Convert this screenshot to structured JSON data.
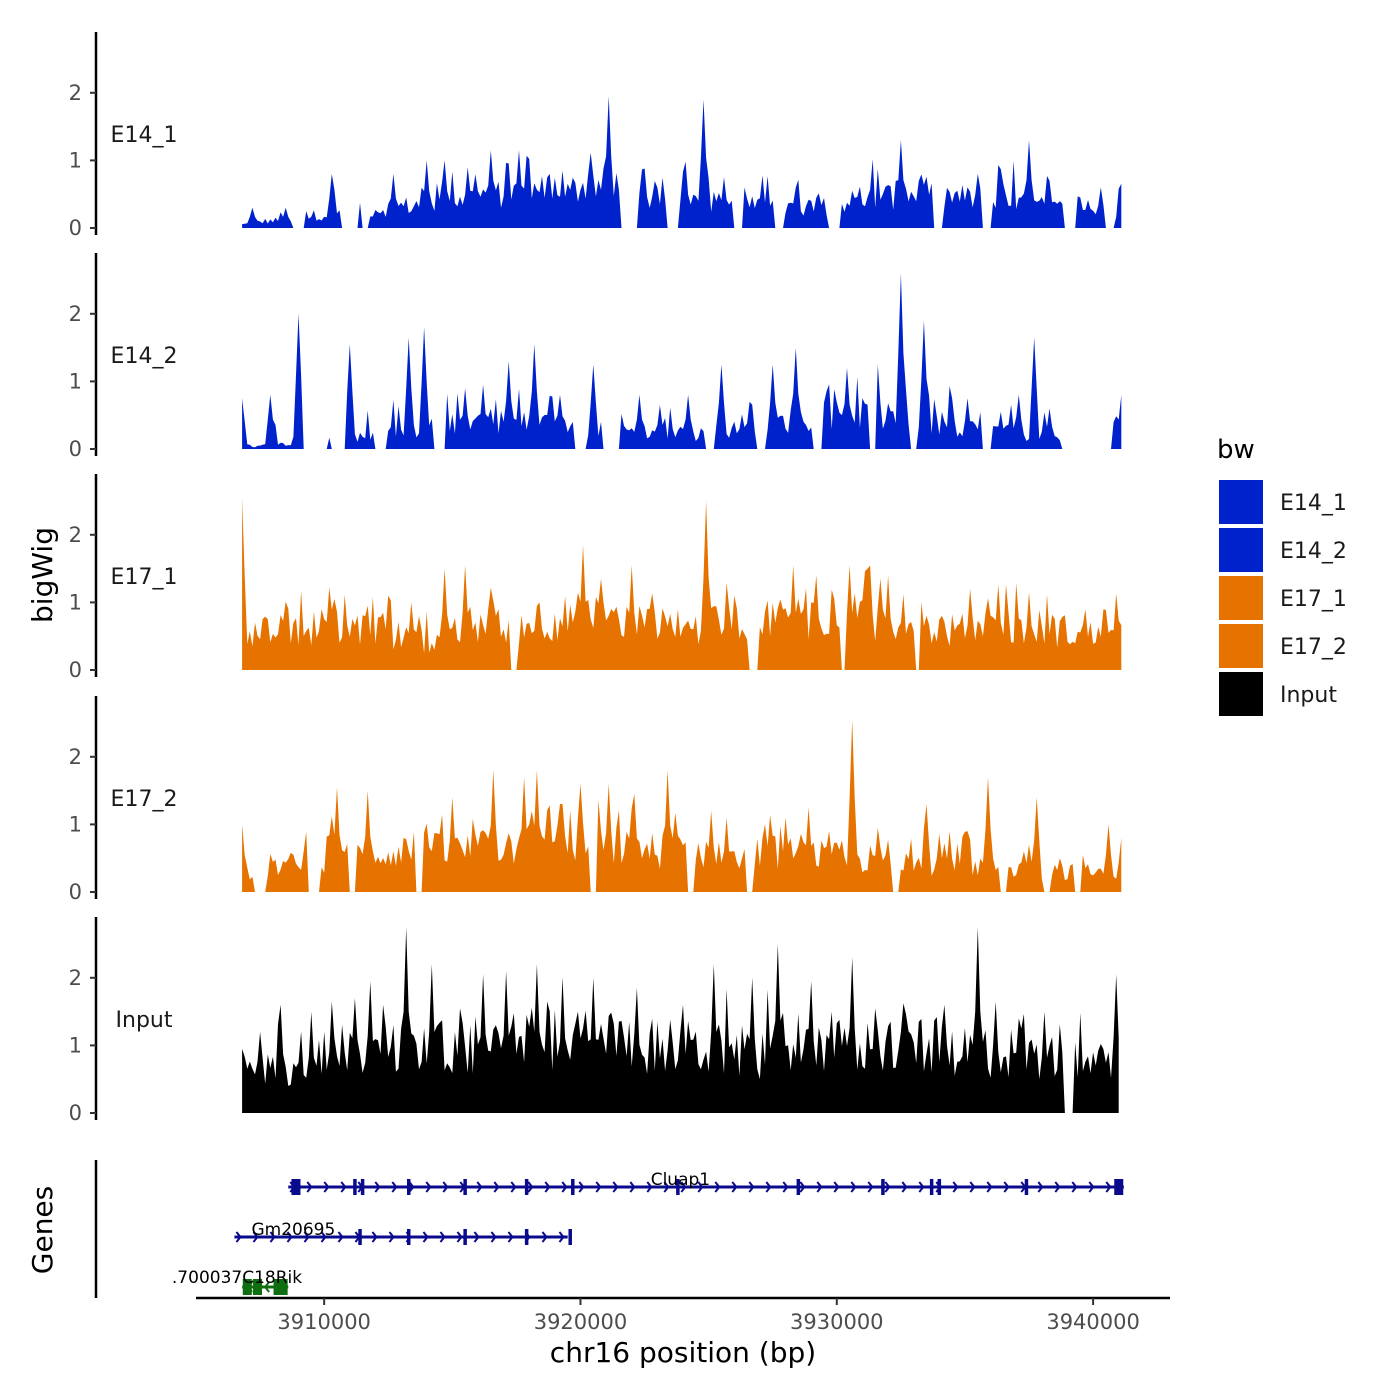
{
  "chart_data": {
    "type": "area",
    "ylabel": "bigWig",
    "xlabel": "chr16 position (bp)",
    "genes_label": "Genes",
    "chrom": "chr16",
    "x_range": [
      3905000,
      3943000
    ],
    "x_ticks": [
      3910000,
      3920000,
      3930000,
      3940000
    ],
    "x_tick_labels": [
      "3910000",
      "3920000",
      "3930000",
      "3940000"
    ],
    "y_range": [
      0,
      2.9
    ],
    "y_ticks": [
      0,
      1,
      2
    ],
    "y_tick_labels": [
      "0",
      "1",
      "2"
    ],
    "legend": {
      "title": "bw",
      "entries": [
        {
          "label": "E14_1",
          "color": "#0022CC"
        },
        {
          "label": "E14_2",
          "color": "#0022CC"
        },
        {
          "label": "E17_1",
          "color": "#E67300"
        },
        {
          "label": "E17_2",
          "color": "#E67300"
        },
        {
          "label": "Input",
          "color": "#000000"
        }
      ]
    },
    "tracks": [
      {
        "name": "E14_1",
        "color": "#0022CC",
        "x_start": 3906800,
        "x_end": 3941100,
        "base": [
          0.05,
          0.1,
          0.12,
          0.18,
          0.22,
          0.25,
          0.28,
          0.32,
          0.35,
          0.4,
          0.45,
          0.5,
          0.52,
          0.55,
          0.58,
          0.6,
          0.62,
          0.55,
          0.5,
          0.45,
          0.42,
          0.38,
          0.35,
          0.32,
          0.3,
          0.32,
          0.36,
          0.4,
          0.44,
          0.48,
          0.5,
          0.48,
          0.45,
          0.42,
          0.38,
          0.35,
          0.3,
          0.28,
          0.25,
          0.22
        ],
        "peaks": [
          [
            3907200,
            0.3
          ],
          [
            3908500,
            0.3
          ],
          [
            3909300,
            0.25
          ],
          [
            3910300,
            0.8
          ],
          [
            3911500,
            0.55
          ],
          [
            3912700,
            0.8
          ],
          [
            3914000,
            1.0
          ],
          [
            3914700,
            1.0
          ],
          [
            3915600,
            0.9
          ],
          [
            3916500,
            1.15
          ],
          [
            3917600,
            1.15
          ],
          [
            3918800,
            0.8
          ],
          [
            3919300,
            0.85
          ],
          [
            3920300,
            0.8
          ],
          [
            3921100,
            1.95
          ],
          [
            3922500,
            0.5
          ],
          [
            3924000,
            0.75
          ],
          [
            3924800,
            1.9
          ],
          [
            3925600,
            0.75
          ],
          [
            3926400,
            0.6
          ],
          [
            3927500,
            0.4
          ],
          [
            3928400,
            0.6
          ],
          [
            3929200,
            0.45
          ],
          [
            3930500,
            0.3
          ],
          [
            3931500,
            0.3
          ],
          [
            3932500,
            1.3
          ],
          [
            3933600,
            0.2
          ],
          [
            3934300,
            0.35
          ],
          [
            3935200,
            0.35
          ],
          [
            3936500,
            0.65
          ],
          [
            3937500,
            1.3
          ],
          [
            3938300,
            0.7
          ],
          [
            3939200,
            0.35
          ],
          [
            3940300,
            0.6
          ],
          [
            3941000,
            0.3
          ]
        ],
        "gaps": [
          [
            3908800,
            3909200
          ],
          [
            3910700,
            3911300
          ],
          [
            3911500,
            3911700
          ],
          [
            3921600,
            3922200
          ],
          [
            3923400,
            3923800
          ],
          [
            3926000,
            3926300
          ],
          [
            3927600,
            3927900
          ],
          [
            3929700,
            3930100
          ],
          [
            3933800,
            3934100
          ],
          [
            3935700,
            3936000
          ],
          [
            3938900,
            3939300
          ],
          [
            3940500,
            3940800
          ]
        ]
      },
      {
        "name": "E14_2",
        "color": "#0022CC",
        "x_start": 3906800,
        "x_end": 3941100,
        "base": [
          0.02,
          0.05,
          0.08,
          0.12,
          0.15,
          0.18,
          0.22,
          0.25,
          0.3,
          0.35,
          0.4,
          0.42,
          0.4,
          0.38,
          0.36,
          0.34,
          0.3,
          0.28,
          0.25,
          0.22,
          0.2,
          0.25,
          0.3,
          0.35,
          0.4,
          0.45,
          0.5,
          0.55,
          0.5,
          0.45,
          0.4,
          0.35,
          0.32,
          0.28,
          0.25,
          0.2,
          0.15,
          0.12,
          0.1,
          0.08
        ],
        "peaks": [
          [
            3906800,
            0.75
          ],
          [
            3907900,
            0.8
          ],
          [
            3909000,
            2.0
          ],
          [
            3911000,
            1.55
          ],
          [
            3913300,
            1.65
          ],
          [
            3913900,
            1.8
          ],
          [
            3915500,
            0.9
          ],
          [
            3916200,
            0.95
          ],
          [
            3917200,
            1.3
          ],
          [
            3918200,
            1.55
          ],
          [
            3919200,
            0.8
          ],
          [
            3920500,
            1.25
          ],
          [
            3921500,
            0.95
          ],
          [
            3922300,
            0.8
          ],
          [
            3923100,
            0.65
          ],
          [
            3924200,
            0.8
          ],
          [
            3925500,
            1.25
          ],
          [
            3926600,
            0.7
          ],
          [
            3927500,
            1.25
          ],
          [
            3928400,
            1.5
          ],
          [
            3929600,
            0.85
          ],
          [
            3930400,
            1.2
          ],
          [
            3931600,
            1.25
          ],
          [
            3932500,
            2.6
          ],
          [
            3933400,
            1.9
          ],
          [
            3934500,
            0.75
          ],
          [
            3935100,
            0.75
          ],
          [
            3936400,
            0.55
          ],
          [
            3937100,
            0.8
          ],
          [
            3937700,
            1.65
          ],
          [
            3938300,
            0.6
          ],
          [
            3940800,
            0.4
          ],
          [
            3941100,
            0.8
          ]
        ],
        "gaps": [
          [
            3909200,
            3910100
          ],
          [
            3910300,
            3910800
          ],
          [
            3912000,
            3912400
          ],
          [
            3914300,
            3914700
          ],
          [
            3919800,
            3920200
          ],
          [
            3920900,
            3921500
          ],
          [
            3924900,
            3925200
          ],
          [
            3926900,
            3927200
          ],
          [
            3929100,
            3929400
          ],
          [
            3931300,
            3931500
          ],
          [
            3932900,
            3933100
          ],
          [
            3935700,
            3936000
          ],
          [
            3938800,
            3940700
          ]
        ]
      },
      {
        "name": "E17_1",
        "color": "#E67300",
        "x_start": 3906800,
        "x_end": 3941100,
        "base": [
          0.5,
          0.55,
          0.6,
          0.65,
          0.62,
          0.58,
          0.55,
          0.5,
          0.45,
          0.42,
          0.48,
          0.55,
          0.65,
          0.72,
          0.78,
          0.8,
          0.76,
          0.72,
          0.68,
          0.62,
          0.6,
          0.65,
          0.7,
          0.75,
          0.78,
          0.8,
          0.82,
          0.8,
          0.75,
          0.7,
          0.65,
          0.6,
          0.58,
          0.6,
          0.62,
          0.65,
          0.6,
          0.55,
          0.5,
          0.45
        ],
        "peaks": [
          [
            3906800,
            2.55
          ],
          [
            3907800,
            0.75
          ],
          [
            3908800,
            0.7
          ],
          [
            3910400,
            1.05
          ],
          [
            3911700,
            0.95
          ],
          [
            3912500,
            1.1
          ],
          [
            3913400,
            1.0
          ],
          [
            3914700,
            1.5
          ],
          [
            3915500,
            1.55
          ],
          [
            3916800,
            0.9
          ],
          [
            3918400,
            1.0
          ],
          [
            3919400,
            1.0
          ],
          [
            3920100,
            1.85
          ],
          [
            3920800,
            1.35
          ],
          [
            3922000,
            1.55
          ],
          [
            3922900,
            0.85
          ],
          [
            3923800,
            0.9
          ],
          [
            3924900,
            2.5
          ],
          [
            3926000,
            1.1
          ],
          [
            3926700,
            0.95
          ],
          [
            3927600,
            0.7
          ],
          [
            3928300,
            1.55
          ],
          [
            3929200,
            1.4
          ],
          [
            3930500,
            1.55
          ],
          [
            3931200,
            1.5
          ],
          [
            3932000,
            1.4
          ],
          [
            3933400,
            0.65
          ],
          [
            3934100,
            0.8
          ],
          [
            3935200,
            1.2
          ],
          [
            3936400,
            0.7
          ],
          [
            3937500,
            1.15
          ],
          [
            3938500,
            0.6
          ],
          [
            3939700,
            0.9
          ],
          [
            3940400,
            0.9
          ],
          [
            3941100,
            0.55
          ]
        ],
        "gaps": [
          [
            3917300,
            3917500
          ],
          [
            3926600,
            3926900
          ],
          [
            3930200,
            3930300
          ],
          [
            3933100,
            3933200
          ]
        ]
      },
      {
        "name": "E17_2",
        "color": "#E67300",
        "x_start": 3906800,
        "x_end": 3941100,
        "base": [
          0.3,
          0.35,
          0.4,
          0.45,
          0.5,
          0.55,
          0.58,
          0.6,
          0.62,
          0.6,
          0.62,
          0.65,
          0.7,
          0.72,
          0.75,
          0.72,
          0.7,
          0.66,
          0.62,
          0.6,
          0.58,
          0.6,
          0.62,
          0.6,
          0.58,
          0.55,
          0.52,
          0.5,
          0.48,
          0.46,
          0.44,
          0.42,
          0.4,
          0.38,
          0.36,
          0.34,
          0.32,
          0.3,
          0.28,
          0.26
        ],
        "peaks": [
          [
            3906800,
            1.0
          ],
          [
            3909200,
            0.6
          ],
          [
            3910500,
            1.55
          ],
          [
            3911700,
            1.5
          ],
          [
            3913100,
            0.8
          ],
          [
            3913600,
            1.3
          ],
          [
            3915000,
            1.4
          ],
          [
            3916600,
            1.8
          ],
          [
            3917800,
            1.7
          ],
          [
            3918300,
            1.8
          ],
          [
            3919300,
            1.3
          ],
          [
            3920000,
            1.6
          ],
          [
            3921100,
            1.6
          ],
          [
            3922100,
            1.45
          ],
          [
            3923400,
            1.8
          ],
          [
            3924300,
            0.8
          ],
          [
            3925100,
            1.2
          ],
          [
            3925700,
            1.1
          ],
          [
            3926600,
            0.95
          ],
          [
            3927200,
            1.0
          ],
          [
            3928000,
            1.1
          ],
          [
            3928900,
            1.25
          ],
          [
            3929700,
            0.9
          ],
          [
            3930600,
            2.55
          ],
          [
            3931600,
            0.95
          ],
          [
            3932300,
            0.75
          ],
          [
            3933500,
            1.3
          ],
          [
            3934400,
            0.9
          ],
          [
            3935100,
            0.9
          ],
          [
            3935900,
            1.7
          ],
          [
            3937300,
            0.6
          ],
          [
            3937800,
            1.4
          ],
          [
            3938700,
            0.5
          ],
          [
            3939600,
            0.55
          ],
          [
            3940600,
            1.0
          ],
          [
            3941100,
            0.8
          ]
        ],
        "gaps": [
          [
            3907300,
            3907700
          ],
          [
            3909400,
            3909800
          ],
          [
            3911000,
            3911200
          ],
          [
            3913600,
            3913800
          ],
          [
            3920400,
            3920600
          ],
          [
            3924200,
            3924400
          ],
          [
            3926500,
            3926700
          ],
          [
            3932200,
            3932400
          ],
          [
            3936400,
            3936600
          ],
          [
            3938100,
            3938300
          ],
          [
            3939300,
            3939500
          ]
        ]
      },
      {
        "name": "Input",
        "color": "#000000",
        "x_start": 3906800,
        "x_end": 3941000,
        "base": [
          0.6,
          0.65,
          0.72,
          0.8,
          0.85,
          0.88,
          0.9,
          0.92,
          0.95,
          0.98,
          1.0,
          1.02,
          1.05,
          1.08,
          1.1,
          1.08,
          1.05,
          1.02,
          1.0,
          0.98,
          0.95,
          0.92,
          0.9,
          0.88,
          0.9,
          0.92,
          0.95,
          0.98,
          1.0,
          1.02,
          1.0,
          0.98,
          0.95,
          0.92,
          0.9,
          0.85,
          0.8,
          0.75,
          0.7,
          0.75
        ],
        "peaks": [
          [
            3906800,
            0.95
          ],
          [
            3907500,
            1.2
          ],
          [
            3908300,
            1.6
          ],
          [
            3909500,
            1.5
          ],
          [
            3910300,
            1.65
          ],
          [
            3911200,
            1.7
          ],
          [
            3911800,
            1.95
          ],
          [
            3912300,
            1.6
          ],
          [
            3913200,
            2.75
          ],
          [
            3914200,
            2.2
          ],
          [
            3915300,
            1.55
          ],
          [
            3916200,
            2.05
          ],
          [
            3917100,
            2.1
          ],
          [
            3918300,
            2.2
          ],
          [
            3918700,
            1.65
          ],
          [
            3919900,
            1.5
          ],
          [
            3920500,
            2.0
          ],
          [
            3921300,
            1.3
          ],
          [
            3922200,
            1.85
          ],
          [
            3923000,
            1.1
          ],
          [
            3924000,
            1.6
          ],
          [
            3925200,
            2.2
          ],
          [
            3926700,
            2.0
          ],
          [
            3927700,
            2.5
          ],
          [
            3929000,
            1.95
          ],
          [
            3929800,
            1.5
          ],
          [
            3930600,
            2.3
          ],
          [
            3931500,
            1.55
          ],
          [
            3932500,
            1.2
          ],
          [
            3933200,
            1.35
          ],
          [
            3934200,
            1.6
          ],
          [
            3935500,
            2.75
          ],
          [
            3936200,
            1.65
          ],
          [
            3937100,
            1.4
          ],
          [
            3938100,
            1.5
          ],
          [
            3938800,
            0.9
          ],
          [
            3940000,
            0.9
          ],
          [
            3940900,
            2.05
          ]
        ],
        "gaps": [
          [
            3938900,
            3939200
          ]
        ]
      }
    ],
    "genes": [
      {
        "name": "Cluap1",
        "strand": "+",
        "start": 3908600,
        "end": 3941200,
        "exons": [
          3908900,
          3911200,
          3911500,
          3913300,
          3915500,
          3917900,
          3919700,
          3923800,
          3928500,
          3931800,
          3933700,
          3934000,
          3937400,
          3941000
        ],
        "color": "#0A0A8C"
      },
      {
        "name": "Gm20695",
        "strand": "+",
        "start": 3906500,
        "end": 3919500,
        "exons": [
          3911400,
          3913300,
          3915500,
          3917900,
          3919600
        ],
        "color": "#0A0A8C"
      },
      {
        "name": "1700037C18Rik",
        "label": ".700037C18Rik",
        "strand": "-",
        "start": 3906800,
        "end": 3908600,
        "exons": [
          3907000,
          3907400,
          3908200,
          3908400
        ],
        "color": "#0F6E0F"
      }
    ]
  }
}
